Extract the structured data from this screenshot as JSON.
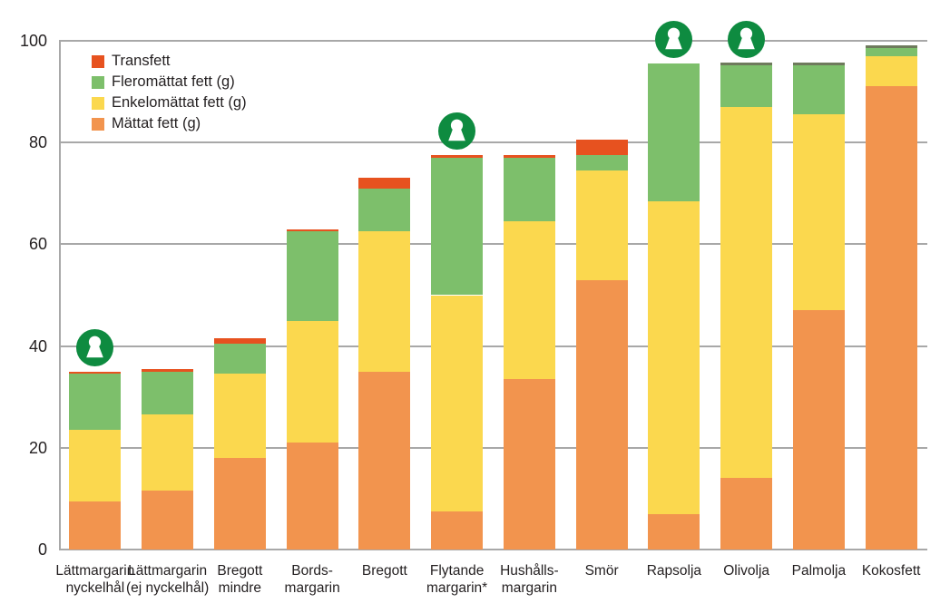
{
  "chart_data": {
    "type": "bar",
    "stacked": true,
    "title": "",
    "xlabel": "",
    "ylabel": "",
    "ylim": [
      0,
      100
    ],
    "yticks": [
      0,
      20,
      40,
      60,
      80,
      100
    ],
    "grid": true,
    "legend_position": "top-left",
    "legend_order": [
      "Transfett",
      "Fleromättat fett (g)",
      "Enkelomättat fett (g)",
      "Mättat fett (g)"
    ],
    "categories": [
      "Lättmargarin\nnyckelhål",
      "Lättmargarin\n(ej nyckelhål)",
      "Bregott\nmindre",
      "Bords-\nmargarin",
      "Bregott",
      "Flytande\nmargarin*",
      "Hushålls-\nmargarin",
      "Smör",
      "Rapsolja",
      "Olivolja",
      "Palmolja",
      "Kokosfett"
    ],
    "series": [
      {
        "name": "Mättat fett (g)",
        "color": "#F2944E",
        "values": [
          9.5,
          11.5,
          18,
          21,
          35,
          7.5,
          33.5,
          53,
          7,
          14,
          47,
          91
        ]
      },
      {
        "name": "Enkelomättat fett (g)",
        "color": "#FBD84E",
        "values": [
          14,
          15,
          16.5,
          24,
          27.5,
          42.5,
          31,
          21.5,
          61.5,
          73,
          38.5,
          6
        ]
      },
      {
        "name": "Fleromättat fett (g)",
        "color": "#7DBF6B",
        "values": [
          11,
          8.5,
          6,
          17.5,
          8.5,
          27,
          12.5,
          3,
          27,
          8.5,
          10,
          2
        ]
      },
      {
        "name": "Transfett",
        "color": "#E7521F",
        "values": [
          0.5,
          0.5,
          1,
          0.5,
          2,
          0.5,
          0.5,
          3,
          0,
          0,
          0,
          0
        ]
      }
    ],
    "totals": [
      35,
      35.5,
      41.5,
      63,
      73,
      77.5,
      77.5,
      80.5,
      95.5,
      95.5,
      95.5,
      99
    ],
    "keyhole_symbol": {
      "name": "nyckelhal-keyhole-symbol",
      "color": "#0E8B40",
      "on_categories": [
        "Lättmargarin\nnyckelhål",
        "Flytande\nmargarin*",
        "Rapsolja",
        "Olivolja"
      ]
    },
    "dark_top_edge_categories": [
      "Olivolja",
      "Palmolja",
      "Kokosfett"
    ],
    "colors": {
      "grid": "#A8A8A8",
      "axis": "#A8A8A8",
      "text": "#231F20",
      "background": "#FFFFFF",
      "bar_top_edge": "#6E7A5C"
    }
  }
}
